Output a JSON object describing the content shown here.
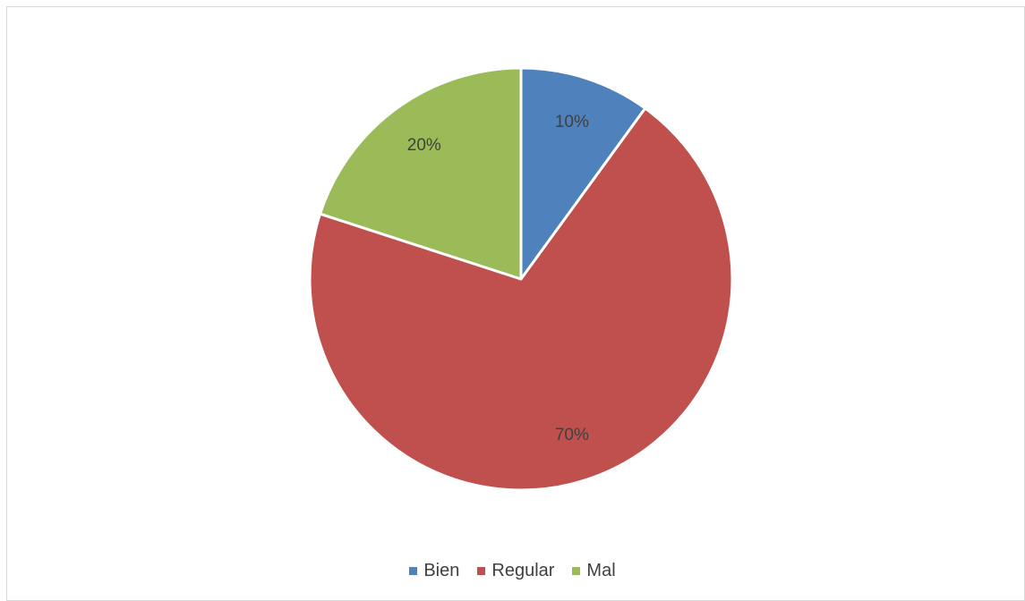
{
  "chart_data": {
    "type": "pie",
    "title": "",
    "categories": [
      "Bien",
      "Regular",
      "Mal"
    ],
    "values": [
      10,
      70,
      20
    ],
    "data_labels": [
      "10%",
      "70%",
      "20%"
    ],
    "colors": [
      "#4f81bd",
      "#c0504d",
      "#9bbb59"
    ],
    "legend": {
      "placement": "bottom",
      "entries": [
        "Bien",
        "Regular",
        "Mal"
      ]
    }
  }
}
